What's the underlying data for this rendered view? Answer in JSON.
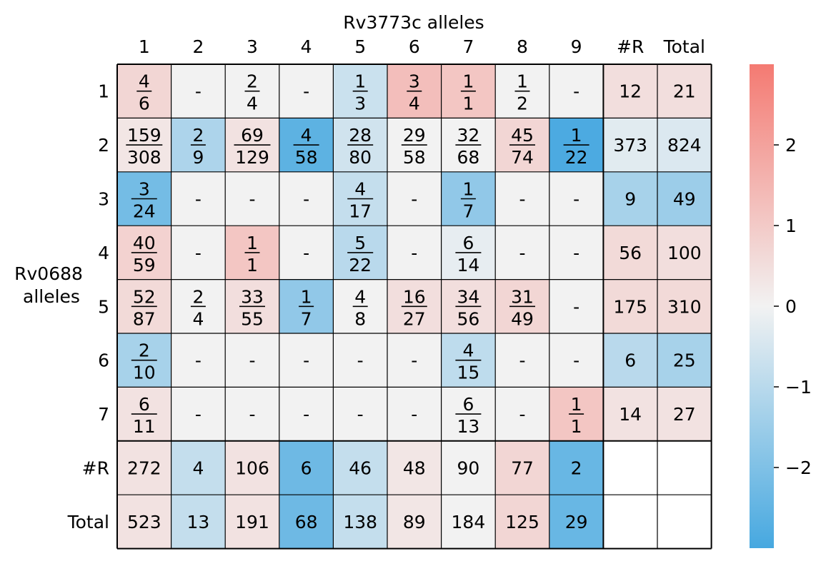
{
  "chart_data": {
    "type": "heatmap",
    "title": "",
    "xlabel": "Rv3773c alleles",
    "ylabel_lines": [
      "Rv0688",
      "alleles"
    ],
    "columns": [
      "1",
      "2",
      "3",
      "4",
      "5",
      "6",
      "7",
      "8",
      "9",
      "#R",
      "Total"
    ],
    "rows": [
      "1",
      "2",
      "3",
      "4",
      "5",
      "6",
      "7",
      "#R",
      "Total"
    ],
    "cells": [
      [
        {
          "n": "4",
          "d": "6",
          "v": 0.7
        },
        {
          "t": "-",
          "v": 0
        },
        {
          "n": "2",
          "d": "4",
          "v": 0
        },
        {
          "t": "-",
          "v": 0
        },
        {
          "n": "1",
          "d": "3",
          "v": -0.7
        },
        {
          "n": "3",
          "d": "4",
          "v": 1.3
        },
        {
          "n": "1",
          "d": "1",
          "v": 1.1
        },
        {
          "n": "1",
          "d": "2",
          "v": 0
        },
        {
          "t": "-",
          "v": 0
        },
        {
          "t": "12",
          "v": 0.5
        },
        {
          "t": "21",
          "v": 0.5
        }
      ],
      [
        {
          "n": "159",
          "d": "308",
          "v": 0.3
        },
        {
          "n": "2",
          "d": "9",
          "v": -1.2
        },
        {
          "n": "69",
          "d": "129",
          "v": 0.4
        },
        {
          "n": "4",
          "d": "58",
          "v": -2.6
        },
        {
          "n": "28",
          "d": "80",
          "v": -0.6
        },
        {
          "n": "29",
          "d": "58",
          "v": 0
        },
        {
          "n": "32",
          "d": "68",
          "v": 0
        },
        {
          "n": "45",
          "d": "74",
          "v": 0.7
        },
        {
          "n": "1",
          "d": "22",
          "v": -2.9
        },
        {
          "t": "373",
          "v": -0.3
        },
        {
          "t": "824",
          "v": -0.4
        }
      ],
      [
        {
          "n": "3",
          "d": "24",
          "v": -2.2
        },
        {
          "t": "-",
          "v": 0
        },
        {
          "t": "-",
          "v": 0
        },
        {
          "t": "-",
          "v": 0
        },
        {
          "n": "4",
          "d": "17",
          "v": -0.8
        },
        {
          "t": "-",
          "v": 0
        },
        {
          "n": "1",
          "d": "7",
          "v": -1.7
        },
        {
          "t": "-",
          "v": 0
        },
        {
          "t": "-",
          "v": 0
        },
        {
          "t": "9",
          "v": -1.3
        },
        {
          "t": "49",
          "v": -1.5
        }
      ],
      [
        {
          "n": "40",
          "d": "59",
          "v": 0.8
        },
        {
          "t": "-",
          "v": 0
        },
        {
          "n": "1",
          "d": "1",
          "v": 1.1
        },
        {
          "t": "-",
          "v": 0
        },
        {
          "n": "5",
          "d": "22",
          "v": -1.0
        },
        {
          "t": "-",
          "v": 0
        },
        {
          "n": "6",
          "d": "14",
          "v": -0.2
        },
        {
          "t": "-",
          "v": 0
        },
        {
          "t": "-",
          "v": 0
        },
        {
          "t": "56",
          "v": 0.6
        },
        {
          "t": "100",
          "v": 0.5
        }
      ],
      [
        {
          "n": "52",
          "d": "87",
          "v": 0.6
        },
        {
          "n": "2",
          "d": "4",
          "v": 0
        },
        {
          "n": "33",
          "d": "55",
          "v": 0.5
        },
        {
          "n": "1",
          "d": "7",
          "v": -1.7
        },
        {
          "n": "4",
          "d": "8",
          "v": 0
        },
        {
          "n": "16",
          "d": "27",
          "v": 0.5
        },
        {
          "n": "34",
          "d": "56",
          "v": 0.5
        },
        {
          "n": "31",
          "d": "49",
          "v": 0.7
        },
        {
          "t": "-",
          "v": 0
        },
        {
          "t": "175",
          "v": 0.6
        },
        {
          "t": "310",
          "v": 0.6
        }
      ],
      [
        {
          "n": "2",
          "d": "10",
          "v": -1.3
        },
        {
          "t": "-",
          "v": 0
        },
        {
          "t": "-",
          "v": 0
        },
        {
          "t": "-",
          "v": 0
        },
        {
          "t": "-",
          "v": 0
        },
        {
          "t": "-",
          "v": 0
        },
        {
          "n": "4",
          "d": "15",
          "v": -0.9
        },
        {
          "t": "-",
          "v": 0
        },
        {
          "t": "-",
          "v": 0
        },
        {
          "t": "6",
          "v": -1.0
        },
        {
          "t": "25",
          "v": -1.3
        }
      ],
      [
        {
          "n": "6",
          "d": "11",
          "v": 0.4
        },
        {
          "t": "-",
          "v": 0
        },
        {
          "t": "-",
          "v": 0
        },
        {
          "t": "-",
          "v": 0
        },
        {
          "t": "-",
          "v": 0
        },
        {
          "t": "-",
          "v": 0
        },
        {
          "n": "6",
          "d": "13",
          "v": 0
        },
        {
          "t": "-",
          "v": 0
        },
        {
          "n": "1",
          "d": "1",
          "v": 1.1
        },
        {
          "t": "14",
          "v": 0.4
        },
        {
          "t": "27",
          "v": 0.4
        }
      ],
      [
        {
          "t": "272",
          "v": 0.4
        },
        {
          "t": "4",
          "v": -0.8
        },
        {
          "t": "106",
          "v": 0.4
        },
        {
          "t": "6",
          "v": -2.3
        },
        {
          "t": "46",
          "v": -0.8
        },
        {
          "t": "48",
          "v": 0.3
        },
        {
          "t": "90",
          "v": 0
        },
        {
          "t": "77",
          "v": 0.7
        },
        {
          "t": "2",
          "v": -2.4
        },
        {
          "t": "",
          "v": null
        },
        {
          "t": "",
          "v": null
        }
      ],
      [
        {
          "t": "523",
          "v": 0.4
        },
        {
          "t": "13",
          "v": -0.8
        },
        {
          "t": "191",
          "v": 0.4
        },
        {
          "t": "68",
          "v": -2.3
        },
        {
          "t": "138",
          "v": -0.8
        },
        {
          "t": "89",
          "v": 0.3
        },
        {
          "t": "184",
          "v": 0
        },
        {
          "t": "125",
          "v": 0.7
        },
        {
          "t": "29",
          "v": -2.4
        },
        {
          "t": "",
          "v": null
        },
        {
          "t": "",
          "v": null
        }
      ]
    ],
    "colorbar": {
      "range": [
        -3,
        3
      ],
      "ticks": [
        2,
        1,
        0,
        -1,
        -2
      ],
      "tick_labels": [
        "2",
        "1",
        "0",
        "−1",
        "−2"
      ],
      "colors": {
        "positive": "#f47a72",
        "neutral": "#f2f2f2",
        "negative": "#46a8e0"
      }
    },
    "grid": true,
    "legend": "colorbar-right"
  }
}
